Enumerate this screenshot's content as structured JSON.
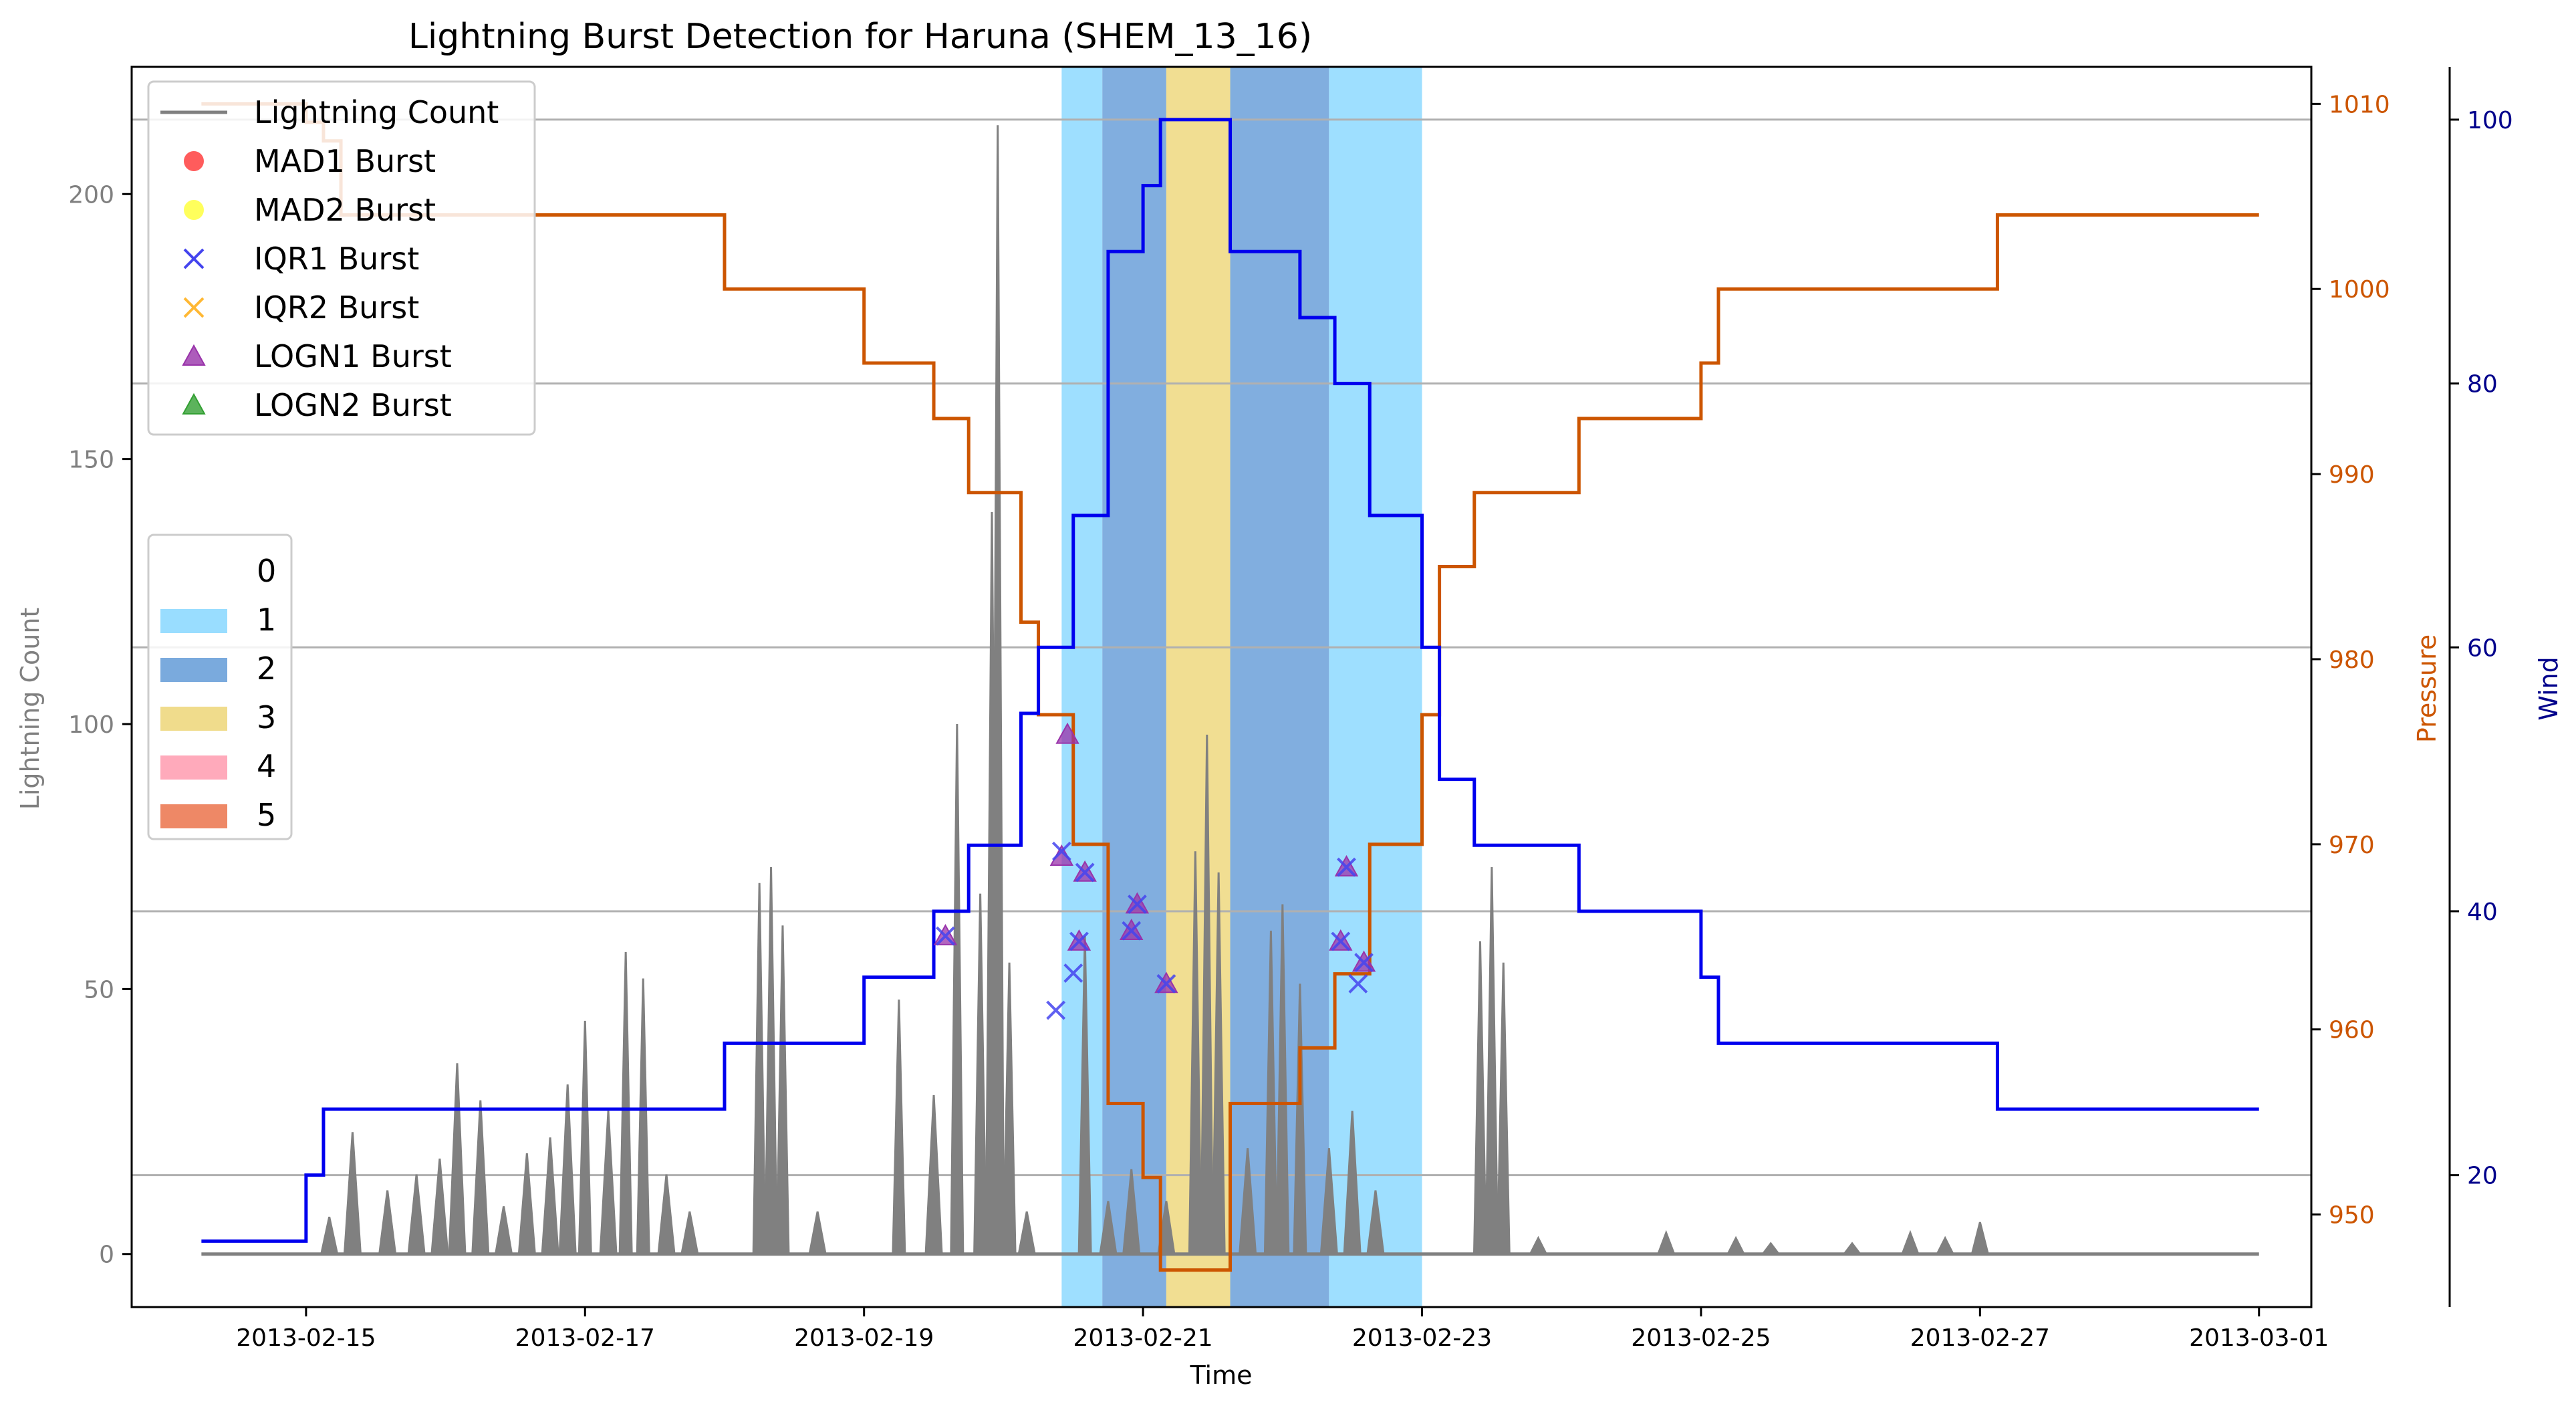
{
  "chart_data": {
    "type": "line",
    "title": "Lightning Burst Detection for Haruna (SHEM_13_16)",
    "xlabel": "Time",
    "ylabel": "Lightning Count",
    "ylabel_pressure": "Pressure",
    "ylabel_wind": "Wind",
    "xlim": [
      "2013-02-13 18:00",
      "2013-03-01 09:00"
    ],
    "ylim": [
      -10,
      224
    ],
    "pressure_lim": [
      945,
      1012
    ],
    "wind_lim": [
      10,
      104
    ],
    "x_ticks": [
      "2013-02-15",
      "2013-02-17",
      "2013-02-19",
      "2013-02-21",
      "2013-02-23",
      "2013-02-25",
      "2013-02-27",
      "2013-03-01"
    ],
    "y_ticks": [
      0,
      50,
      100,
      150,
      200
    ],
    "pressure_ticks": [
      950,
      960,
      970,
      980,
      990,
      1000,
      1010
    ],
    "wind_ticks": [
      20,
      40,
      60,
      80,
      100
    ],
    "grid": "horizontal",
    "colors": {
      "lightning": "#808080",
      "pressure": "#cc5500",
      "wind": "#0000ee",
      "pressure_axis": "#cc5500",
      "wind_axis": "#00008b",
      "count_axis": "#808080"
    },
    "legend_series": {
      "placement": "upper-left",
      "entries": [
        {
          "label": "Lightning Count",
          "marker": "line",
          "color": "#808080"
        },
        {
          "label": "MAD1 Burst",
          "marker": "circle",
          "color": "#ff3333"
        },
        {
          "label": "MAD2 Burst",
          "marker": "circle",
          "color": "#ffff33"
        },
        {
          "label": "IQR1 Burst",
          "marker": "x",
          "color": "#4444ee"
        },
        {
          "label": "IQR2 Burst",
          "marker": "x",
          "color": "#ffb833"
        },
        {
          "label": "LOGN1 Burst",
          "marker": "triangle",
          "color": "#9933aa"
        },
        {
          "label": "LOGN2 Burst",
          "marker": "triangle",
          "color": "#33a033"
        }
      ]
    },
    "legend_category": {
      "placement": "center-left",
      "entries": [
        {
          "label": "0",
          "color": "#ffffff"
        },
        {
          "label": "1",
          "color": "#99ddff"
        },
        {
          "label": "2",
          "color": "#7aaadd"
        },
        {
          "label": "3",
          "color": "#f0dc8c"
        },
        {
          "label": "4",
          "color": "#ffaabb"
        },
        {
          "label": "5",
          "color": "#ee8866"
        }
      ]
    },
    "category_bands": [
      {
        "start": "2013-02-20 10:00",
        "end": "2013-02-20 17:00",
        "category": 1
      },
      {
        "start": "2013-02-20 17:00",
        "end": "2013-02-21 04:00",
        "category": 2
      },
      {
        "start": "2013-02-21 04:00",
        "end": "2013-02-21 15:00",
        "category": 3
      },
      {
        "start": "2013-02-21 15:00",
        "end": "2013-02-22 08:00",
        "category": 2
      },
      {
        "start": "2013-02-22 08:00",
        "end": "2013-02-23 00:00",
        "category": 1
      }
    ],
    "pressure": [
      [
        "2013-02-14 06:00",
        1010
      ],
      [
        "2013-02-15 00:00",
        1009
      ],
      [
        "2013-02-15 03:00",
        1008
      ],
      [
        "2013-02-15 06:00",
        1004
      ],
      [
        "2013-02-18 00:00",
        1000
      ],
      [
        "2013-02-19 00:00",
        996
      ],
      [
        "2013-02-19 12:00",
        993
      ],
      [
        "2013-02-19 18:00",
        989
      ],
      [
        "2013-02-20 03:00",
        982
      ],
      [
        "2013-02-20 06:00",
        977
      ],
      [
        "2013-02-20 12:00",
        970
      ],
      [
        "2013-02-20 18:00",
        956
      ],
      [
        "2013-02-21 00:00",
        952
      ],
      [
        "2013-02-21 03:00",
        947
      ],
      [
        "2013-02-21 15:00",
        956
      ],
      [
        "2013-02-22 03:00",
        959
      ],
      [
        "2013-02-22 09:00",
        963
      ],
      [
        "2013-02-22 15:00",
        970
      ],
      [
        "2013-02-23 00:00",
        977
      ],
      [
        "2013-02-23 03:00",
        985
      ],
      [
        "2013-02-23 09:00",
        989
      ],
      [
        "2013-02-24 03:00",
        993
      ],
      [
        "2013-02-25 00:00",
        996
      ],
      [
        "2013-02-25 03:00",
        1000
      ],
      [
        "2013-02-27 03:00",
        1004
      ],
      [
        "2013-03-01 00:00",
        1004
      ]
    ],
    "wind": [
      [
        "2013-02-14 06:00",
        15
      ],
      [
        "2013-02-15 00:00",
        20
      ],
      [
        "2013-02-15 03:00",
        25
      ],
      [
        "2013-02-18 00:00",
        30
      ],
      [
        "2013-02-19 00:00",
        35
      ],
      [
        "2013-02-19 12:00",
        40
      ],
      [
        "2013-02-19 18:00",
        45
      ],
      [
        "2013-02-20 03:00",
        55
      ],
      [
        "2013-02-20 06:00",
        60
      ],
      [
        "2013-02-20 12:00",
        70
      ],
      [
        "2013-02-20 18:00",
        90
      ],
      [
        "2013-02-21 00:00",
        95
      ],
      [
        "2013-02-21 03:00",
        100
      ],
      [
        "2013-02-21 15:00",
        90
      ],
      [
        "2013-02-22 03:00",
        85
      ],
      [
        "2013-02-22 09:00",
        80
      ],
      [
        "2013-02-22 15:00",
        70
      ],
      [
        "2013-02-23 00:00",
        60
      ],
      [
        "2013-02-23 03:00",
        50
      ],
      [
        "2013-02-23 09:00",
        45
      ],
      [
        "2013-02-24 03:00",
        40
      ],
      [
        "2013-02-25 00:00",
        35
      ],
      [
        "2013-02-25 03:00",
        30
      ],
      [
        "2013-02-27 03:00",
        25
      ],
      [
        "2013-03-01 00:00",
        25
      ]
    ],
    "lightning_peaks": [
      [
        "2013-02-15 04:00",
        7
      ],
      [
        "2013-02-15 08:00",
        23
      ],
      [
        "2013-02-15 14:00",
        12
      ],
      [
        "2013-02-15 19:00",
        15
      ],
      [
        "2013-02-15 23:00",
        18
      ],
      [
        "2013-02-16 02:00",
        36
      ],
      [
        "2013-02-16 06:00",
        29
      ],
      [
        "2013-02-16 10:00",
        9
      ],
      [
        "2013-02-16 14:00",
        19
      ],
      [
        "2013-02-16 18:00",
        22
      ],
      [
        "2013-02-16 21:00",
        32
      ],
      [
        "2013-02-17 00:00",
        44
      ],
      [
        "2013-02-17 04:00",
        27
      ],
      [
        "2013-02-17 07:00",
        57
      ],
      [
        "2013-02-17 10:00",
        52
      ],
      [
        "2013-02-17 14:00",
        15
      ],
      [
        "2013-02-17 18:00",
        8
      ],
      [
        "2013-02-18 06:00",
        70
      ],
      [
        "2013-02-18 08:00",
        73
      ],
      [
        "2013-02-18 10:00",
        62
      ],
      [
        "2013-02-18 16:00",
        8
      ],
      [
        "2013-02-19 06:00",
        48
      ],
      [
        "2013-02-19 12:00",
        30
      ],
      [
        "2013-02-19 16:00",
        100
      ],
      [
        "2013-02-19 20:00",
        68
      ],
      [
        "2013-02-19 22:00",
        140
      ],
      [
        "2013-02-19 23:00",
        213
      ],
      [
        "2013-02-20 01:00",
        55
      ],
      [
        "2013-02-20 04:00",
        8
      ],
      [
        "2013-02-20 14:00",
        60
      ],
      [
        "2013-02-20 18:00",
        10
      ],
      [
        "2013-02-20 22:00",
        16
      ],
      [
        "2013-02-21 04:00",
        10
      ],
      [
        "2013-02-21 09:00",
        76
      ],
      [
        "2013-02-21 11:00",
        98
      ],
      [
        "2013-02-21 13:00",
        72
      ],
      [
        "2013-02-21 18:00",
        20
      ],
      [
        "2013-02-21 22:00",
        61
      ],
      [
        "2013-02-22 00:00",
        66
      ],
      [
        "2013-02-22 03:00",
        51
      ],
      [
        "2013-02-22 08:00",
        20
      ],
      [
        "2013-02-22 12:00",
        27
      ],
      [
        "2013-02-22 16:00",
        12
      ],
      [
        "2013-02-23 10:00",
        59
      ],
      [
        "2013-02-23 12:00",
        73
      ],
      [
        "2013-02-23 14:00",
        55
      ],
      [
        "2013-02-23 20:00",
        3
      ],
      [
        "2013-02-24 18:00",
        4
      ],
      [
        "2013-02-25 06:00",
        3
      ],
      [
        "2013-02-25 12:00",
        2
      ],
      [
        "2013-02-26 02:00",
        2
      ],
      [
        "2013-02-26 12:00",
        4
      ],
      [
        "2013-02-26 18:00",
        3
      ],
      [
        "2013-02-27 00:00",
        6
      ]
    ],
    "bursts_iqr1": [
      [
        "2013-02-19 14:00",
        60
      ],
      [
        "2013-02-20 09:00",
        46
      ],
      [
        "2013-02-20 10:00",
        76
      ],
      [
        "2013-02-20 12:00",
        53
      ],
      [
        "2013-02-20 13:00",
        59
      ],
      [
        "2013-02-20 14:00",
        72
      ],
      [
        "2013-02-20 22:00",
        61
      ],
      [
        "2013-02-20 23:00",
        66
      ],
      [
        "2013-02-21 04:00",
        51
      ],
      [
        "2013-02-22 10:00",
        59
      ],
      [
        "2013-02-22 11:00",
        73
      ],
      [
        "2013-02-22 13:00",
        51
      ],
      [
        "2013-02-22 14:00",
        55
      ]
    ],
    "bursts_logn1": [
      [
        "2013-02-19 14:00",
        60
      ],
      [
        "2013-02-20 10:00",
        75
      ],
      [
        "2013-02-20 11:00",
        98
      ],
      [
        "2013-02-20 14:00",
        72
      ],
      [
        "2013-02-20 13:00",
        59
      ],
      [
        "2013-02-20 22:00",
        61
      ],
      [
        "2013-02-20 23:00",
        66
      ],
      [
        "2013-02-21 04:00",
        51
      ],
      [
        "2013-02-22 10:00",
        59
      ],
      [
        "2013-02-22 11:00",
        73
      ],
      [
        "2013-02-22 14:00",
        55
      ]
    ]
  }
}
